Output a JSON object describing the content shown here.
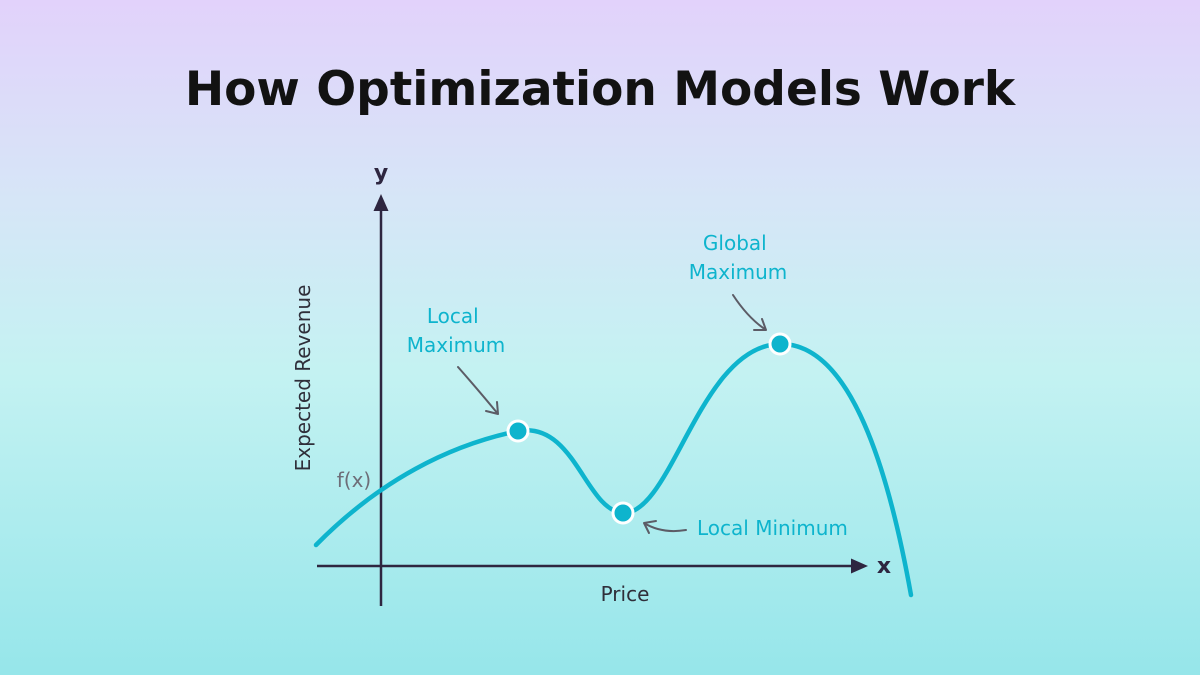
{
  "title": "How Optimization Models Work",
  "axes": {
    "x_letter": "x",
    "y_letter": "y",
    "x_label": "Price",
    "y_label": "Expected Revenue",
    "fx_label": "f(x)"
  },
  "annotations": {
    "local_maximum": [
      "Local",
      "Maximum"
    ],
    "global_maximum": [
      "Global",
      "Maximum"
    ],
    "local_minimum": "Local Minimum"
  },
  "colors": {
    "curve": "#0eb4cd",
    "axis": "#2e2640",
    "title": "#121212"
  }
}
